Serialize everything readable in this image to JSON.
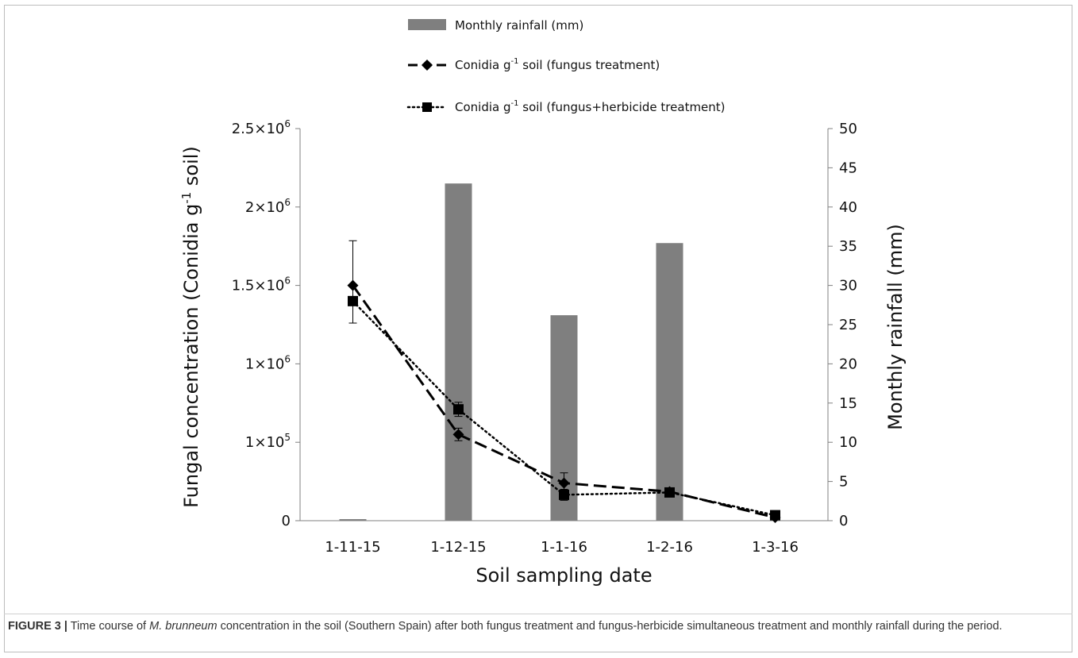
{
  "chart_data": {
    "type": "bar+line",
    "x_categories": [
      "1-11-15",
      "1-12-15",
      "1-1-16",
      "1-2-16",
      "1-3-16"
    ],
    "xlabel": "Soil sampling date",
    "ylabel_left": {
      "pre": "Fungal concentration (Conidia g",
      "sup": "-1",
      "post": " soil)"
    },
    "ylabel_right": "Monthly rainfall (mm)",
    "y_left_ticks": [
      {
        "base": "0",
        "exp": ""
      },
      {
        "base": "1×10",
        "exp": "5"
      },
      {
        "base": "1×10",
        "exp": "6"
      },
      {
        "base": "1.5×10",
        "exp": "6"
      },
      {
        "base": "2×10",
        "exp": "6"
      },
      {
        "base": "2.5×10",
        "exp": "6"
      }
    ],
    "y_left_ticks_note": "left axis is drawn as a uniform 0–5 position scale with printed labels above",
    "y_left_position_range": [
      0,
      5
    ],
    "y_right_ticks": [
      0,
      5,
      10,
      15,
      20,
      25,
      30,
      35,
      40,
      45,
      50
    ],
    "y_right_range": [
      0,
      50
    ],
    "bars": {
      "name": "Monthly rainfall (mm)",
      "axis": "right",
      "color": "#7f7f7f",
      "values": [
        0.2,
        43,
        26.2,
        35.4,
        0
      ]
    },
    "series": [
      {
        "name": "Conidia g-1 soil (fungus treatment)",
        "style": "dashed",
        "marker": "diamond",
        "axis": "left",
        "positions": [
          3.0,
          1.1,
          0.48,
          0.37,
          0.04
        ],
        "error": [
          null,
          0.08,
          0.13,
          null,
          null
        ]
      },
      {
        "name": "Conidia g-1 soil (fungus+herbicide treatment)",
        "style": "dotted",
        "marker": "square",
        "axis": "left",
        "positions": [
          2.8,
          1.42,
          0.33,
          0.36,
          0.07
        ],
        "error": [
          [
            0.28,
            0.77
          ],
          0.09,
          0.07,
          null,
          null
        ]
      }
    ],
    "legend": [
      {
        "label": "Monthly rainfall (mm)",
        "kind": "bar"
      },
      {
        "label_pre": "Conidia g",
        "label_sup": "-1",
        "label_post": " soil (fungus treatment)",
        "kind": "dashed-diamond"
      },
      {
        "label_pre": "Conidia g",
        "label_sup": "-1",
        "label_post": " soil (fungus+herbicide treatment)",
        "kind": "dotted-square"
      }
    ],
    "legend_placement": "top-center",
    "grid": false
  },
  "caption": {
    "lead": "FIGURE 3 |",
    "pre": " Time course of ",
    "species": "M. brunneum",
    "post": " concentration in the soil (Southern Spain) after both fungus treatment and fungus-herbicide simultaneous treatment and monthly rainfall during the period."
  },
  "colors": {
    "bar": "#7f7f7f",
    "line": "#000000",
    "axis": "#808080"
  }
}
